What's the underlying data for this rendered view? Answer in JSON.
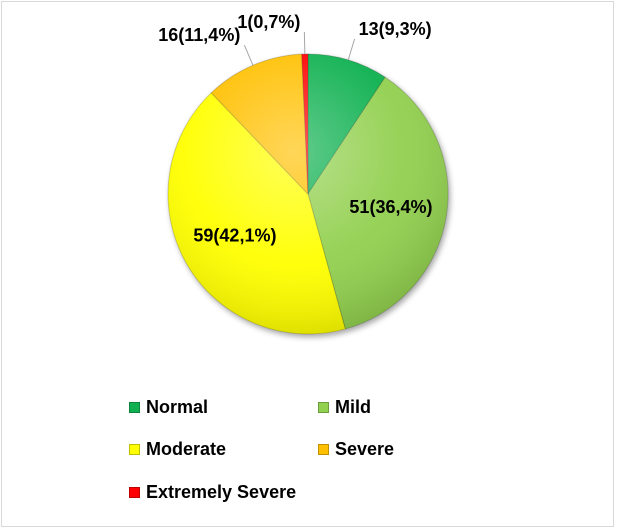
{
  "chart_data": {
    "type": "pie",
    "slices": [
      {
        "label": "Normal",
        "value": 13,
        "display": "13(9,3%)",
        "color": "#10b050"
      },
      {
        "label": "Mild",
        "value": 51,
        "display": "51(36,4%)",
        "color": "#92d050"
      },
      {
        "label": "Moderate",
        "value": 59,
        "display": "59(42,1%)",
        "color": "#ffff00"
      },
      {
        "label": "Severe",
        "value": 16,
        "display": "16(11,4%)",
        "color": "#ffc000"
      },
      {
        "label": "Extremely Severe",
        "value": 1,
        "display": "1(0,7%)",
        "color": "#ff0000"
      }
    ],
    "start": "12 o'clock",
    "direction": "clockwise",
    "legend_position": "bottom"
  }
}
